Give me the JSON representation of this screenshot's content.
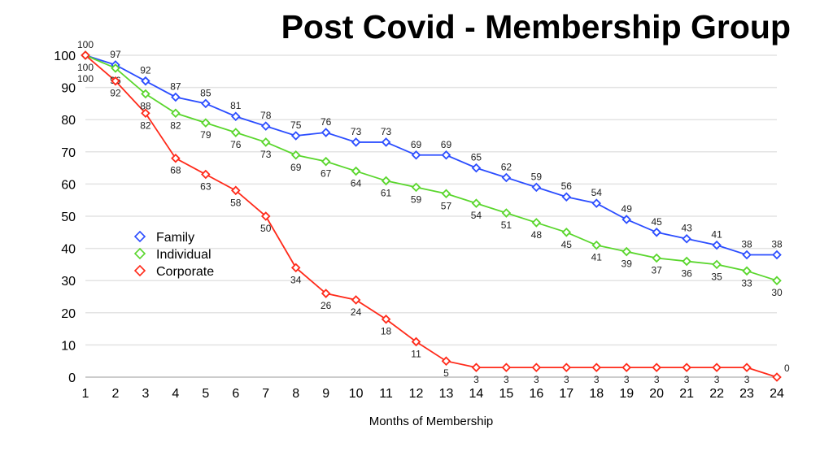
{
  "chart_data": {
    "type": "line",
    "title": "Post Covid - Membership Group",
    "xlabel": "Months of Membership",
    "ylabel": "",
    "x": [
      1,
      2,
      3,
      4,
      5,
      6,
      7,
      8,
      9,
      10,
      11,
      12,
      13,
      14,
      15,
      16,
      17,
      18,
      19,
      20,
      21,
      22,
      23,
      24
    ],
    "ylim": [
      0,
      100
    ],
    "yticks": [
      0,
      10,
      20,
      30,
      40,
      50,
      60,
      70,
      80,
      90,
      100
    ],
    "grid": true,
    "legend": "center-left",
    "series": [
      {
        "name": "Family",
        "color": "#2b4dff",
        "label_pos": "above",
        "values": [
          100,
          97,
          92,
          87,
          85,
          81,
          78,
          75,
          76,
          73,
          73,
          69,
          69,
          65,
          62,
          59,
          56,
          54,
          49,
          45,
          43,
          41,
          38,
          38
        ]
      },
      {
        "name": "Individual",
        "color": "#5ad62d",
        "label_pos": "below",
        "values": [
          100,
          96,
          88,
          82,
          79,
          76,
          73,
          69,
          67,
          64,
          61,
          59,
          57,
          54,
          51,
          48,
          45,
          41,
          39,
          37,
          36,
          35,
          33,
          30
        ]
      },
      {
        "name": "Corporate",
        "color": "#ff2a1a",
        "label_pos": "below",
        "values": [
          100,
          92,
          82,
          68,
          63,
          58,
          50,
          34,
          26,
          24,
          18,
          11,
          5,
          3,
          3,
          3,
          3,
          3,
          3,
          3,
          3,
          3,
          3,
          0
        ]
      }
    ]
  }
}
